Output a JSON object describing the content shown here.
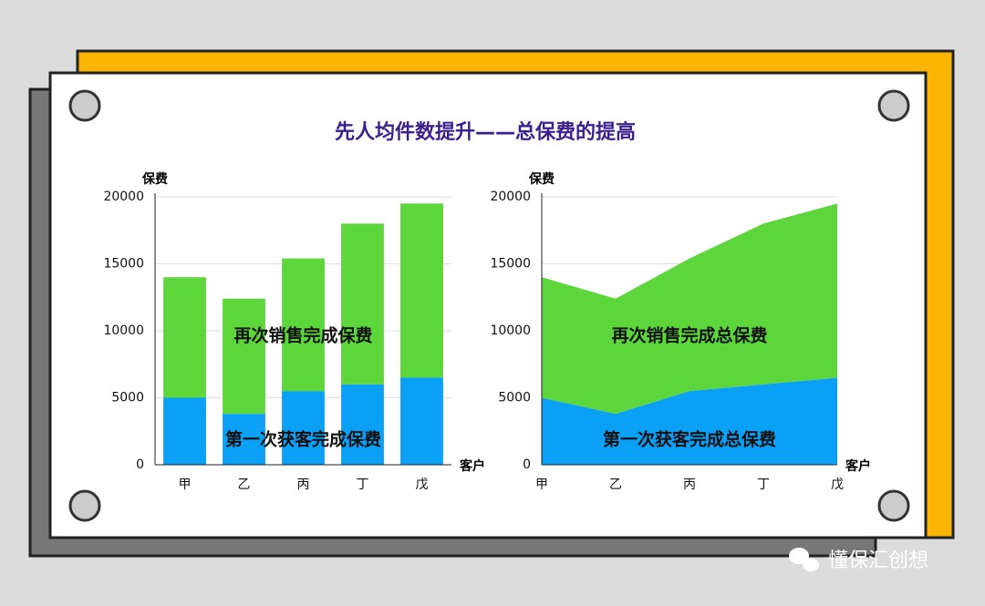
{
  "title": "先人均件数提升——总保费的提高",
  "watermark": "懂保汇创想",
  "chart_data": [
    {
      "type": "bar",
      "stacked": true,
      "y_label": "保费",
      "x_label": "客户",
      "categories": [
        "甲",
        "乙",
        "丙",
        "丁",
        "戊"
      ],
      "series": [
        {
          "name": "第一次获客完成保费",
          "color": "#0aa0f5",
          "values": [
            5000,
            3800,
            5500,
            6000,
            6500
          ]
        },
        {
          "name": "再次销售完成保费",
          "color": "#5dd63b",
          "values": [
            9000,
            8600,
            9900,
            12000,
            13000
          ]
        }
      ],
      "ylim": [
        0,
        20000
      ],
      "yticks": [
        0,
        5000,
        10000,
        15000,
        20000
      ],
      "grid": true
    },
    {
      "type": "area",
      "stacked": true,
      "y_label": "保费",
      "x_label": "客户",
      "categories": [
        "甲",
        "乙",
        "丙",
        "丁",
        "戊"
      ],
      "series": [
        {
          "name": "第一次获客完成总保费",
          "color": "#0aa0f5",
          "values": [
            5000,
            3800,
            5500,
            6000,
            6500
          ]
        },
        {
          "name": "再次销售完成总保费",
          "color": "#5dd63b",
          "values": [
            9000,
            8600,
            9900,
            12000,
            13000
          ]
        }
      ],
      "ylim": [
        0,
        20000
      ],
      "yticks": [
        0,
        5000,
        10000,
        15000,
        20000
      ],
      "grid": true
    }
  ]
}
